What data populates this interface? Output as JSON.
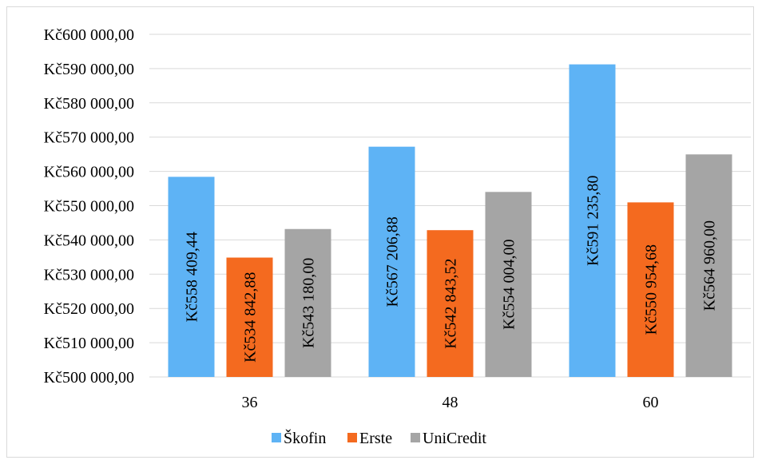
{
  "chart_data": {
    "type": "bar",
    "title": "",
    "xlabel": "",
    "ylabel": "",
    "categories": [
      "36",
      "48",
      "60"
    ],
    "ylim": [
      500000,
      600000
    ],
    "y_ticks": [
      "Kč500 000,00",
      "Kč510 000,00",
      "Kč520 000,00",
      "Kč530 000,00",
      "Kč540 000,00",
      "Kč550 000,00",
      "Kč560 000,00",
      "Kč570 000,00",
      "Kč580 000,00",
      "Kč590 000,00",
      "Kč600 000,00"
    ],
    "grid": true,
    "legend_position": "bottom",
    "series": [
      {
        "name": "Škofin",
        "color": "#5eb3f5",
        "values": [
          558409.44,
          567206.88,
          591235.8
        ],
        "labels": [
          "Kč558 409,44",
          "Kč567 206,88",
          "Kč591 235,80"
        ]
      },
      {
        "name": "Erste",
        "color": "#f46a1f",
        "values": [
          534842.88,
          542843.52,
          550954.68
        ],
        "labels": [
          "Kč534 842,88",
          "Kč542 843,52",
          "Kč550 954,68"
        ]
      },
      {
        "name": "UniCredit",
        "color": "#a5a5a5",
        "values": [
          543180.0,
          554004.0,
          564960.0
        ],
        "labels": [
          "Kč543 180,00",
          "Kč554 004,00",
          "Kč564 960,00"
        ]
      }
    ]
  }
}
